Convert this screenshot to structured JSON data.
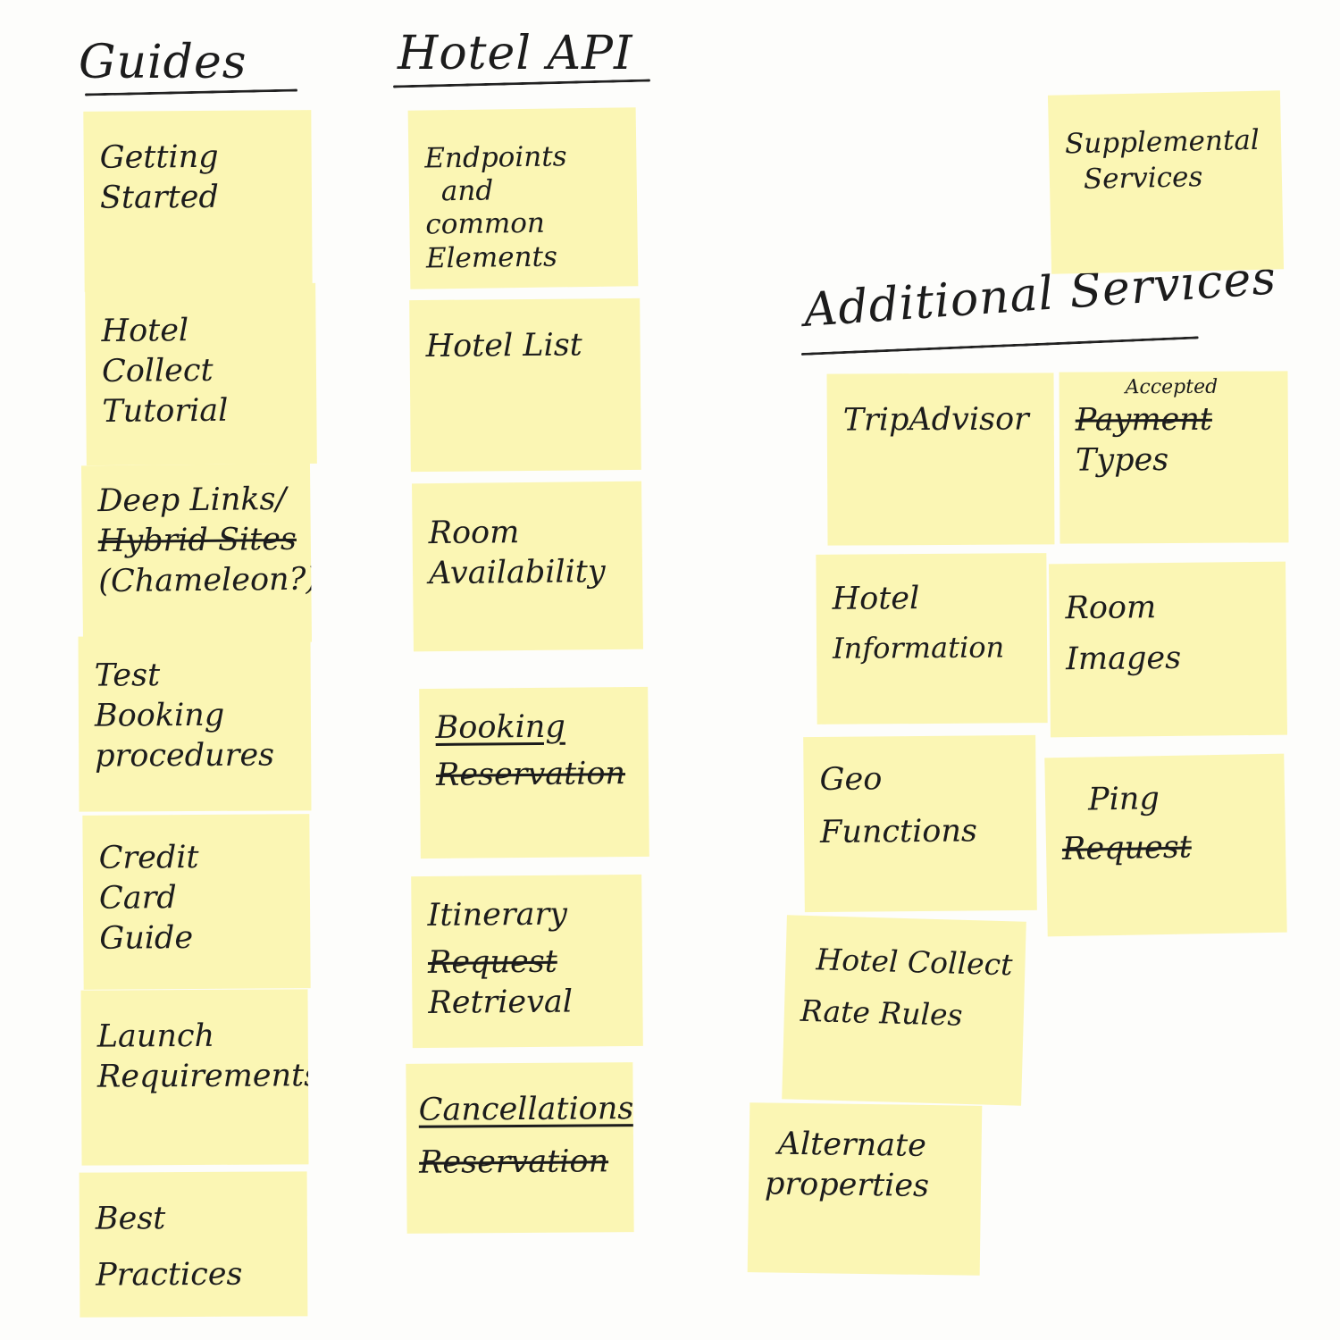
{
  "guides": {
    "title": "Guides",
    "notes": [
      {
        "lines": [
          "Getting",
          "Started"
        ]
      },
      {
        "lines": [
          "Hotel",
          "Collect",
          "Tutorial"
        ]
      },
      {
        "line1": "Deep Links/",
        "line2_struck": "Hybrid Sites",
        "line3": "(Chameleon?)"
      },
      {
        "lines": [
          "Test",
          "Booking",
          "procedures"
        ]
      },
      {
        "lines": [
          "Credit",
          "Card",
          "Guide"
        ]
      },
      {
        "lines": [
          "Launch",
          "Requirements"
        ]
      },
      {
        "lines": [
          "Best",
          "Practices"
        ]
      }
    ]
  },
  "hotel_api": {
    "title": "Hotel API",
    "notes": [
      {
        "lines": [
          "Endpoints",
          "and",
          "common",
          "Elements"
        ]
      },
      {
        "lines": [
          "Hotel List"
        ]
      },
      {
        "lines": [
          "Room",
          "Availability"
        ]
      },
      {
        "line1": "Booking",
        "line2_struck": "Reservation"
      },
      {
        "line1": "Itinerary",
        "line2_struck": "Request",
        "line3": "Retrieval"
      },
      {
        "line1": "Cancellations",
        "line2_struck": "Reservation"
      }
    ]
  },
  "supplemental": {
    "lines": [
      "Supplemental",
      "Services"
    ]
  },
  "additional_services": {
    "title": "Additional Services",
    "notes": [
      {
        "lines": [
          "TripAdvisor"
        ]
      },
      {
        "line0_small": "Accepted",
        "line1_struck": "Payment",
        "line2": "Types"
      },
      {
        "lines": [
          "Hotel",
          "Information"
        ]
      },
      {
        "lines": [
          "Room",
          "Images"
        ]
      },
      {
        "lines": [
          "Geo",
          "Functions"
        ]
      },
      {
        "line1": "Ping",
        "line2_struck": "Request"
      },
      {
        "lines": [
          "Hotel Collect",
          "Rate Rules"
        ]
      },
      {
        "lines": [
          "Alternate",
          "properties"
        ]
      }
    ]
  }
}
